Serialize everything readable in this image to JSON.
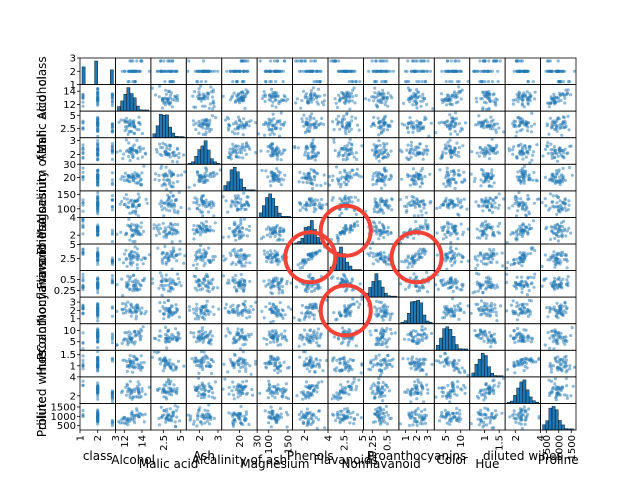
{
  "chart_data": {
    "type": "scatter-matrix",
    "variables": [
      {
        "name": "class",
        "ylabel_shown": "class",
        "lo": 1,
        "hi": 3,
        "ticks": [
          1,
          2,
          3
        ]
      },
      {
        "name": "Alcohol",
        "ylabel_shown": "Alcohol",
        "lo": 11,
        "hi": 15,
        "ticks": [
          12,
          14
        ]
      },
      {
        "name": "Malic acid",
        "ylabel_shown": "Malic acid",
        "lo": 0.7,
        "hi": 5.8,
        "ticks": [
          2.5,
          5.0
        ]
      },
      {
        "name": "Ash",
        "ylabel_shown": "Ash",
        "lo": 1.3,
        "hi": 3.2,
        "ticks": [
          2,
          3
        ]
      },
      {
        "name": "Alcalinity of ash",
        "ylabel_shown": "Alcalinity of ash",
        "lo": 10,
        "hi": 30,
        "ticks": [
          20,
          30
        ]
      },
      {
        "name": "Magnesium",
        "ylabel_shown": "Magnesium",
        "lo": 70,
        "hi": 162,
        "ticks": [
          100,
          150
        ]
      },
      {
        "name": "Phenols",
        "ylabel_shown": "Phenols",
        "lo": 1,
        "hi": 4,
        "ticks": [
          2,
          4
        ]
      },
      {
        "name": "Flavanoids",
        "ylabel_shown": "Flavanoids",
        "lo": 0.3,
        "hi": 5.1,
        "ticks": [
          2.5,
          5.0
        ]
      },
      {
        "name": "Nonflavanoid",
        "ylabel_shown": "Nonflavanoid",
        "lo": 0.1,
        "hi": 0.7,
        "ticks": [
          0.25,
          0.5
        ]
      },
      {
        "name": "Proanthocyanins",
        "ylabel_shown": "Proanthocyanins",
        "lo": 0.4,
        "hi": 3.6,
        "ticks": [
          1,
          2,
          3
        ]
      },
      {
        "name": "Color",
        "ylabel_shown": "Color",
        "lo": 1.2,
        "hi": 13,
        "ticks": [
          5,
          10
        ]
      },
      {
        "name": "Hue",
        "ylabel_shown": "Hue",
        "lo": 0.5,
        "hi": 1.7,
        "ticks": [
          1.0,
          1.5
        ]
      },
      {
        "name": "diluted wines",
        "ylabel_shown": "diluted wines",
        "lo": 1.2,
        "hi": 4,
        "ticks": [
          2,
          4
        ]
      },
      {
        "name": "Proline",
        "ylabel_shown": "Proline",
        "lo": 270,
        "hi": 1690,
        "ticks": [
          500,
          1000,
          1500
        ]
      }
    ],
    "xlabels_shown": [
      "class",
      "Alcohol",
      "Malic acid",
      "Ash",
      "Alcalinity of ash",
      "Magnesium",
      "Phenols",
      "Flavanoids",
      "Nonflavanoid",
      "Proanthocyanins",
      "Color",
      "Hue",
      "diluted wines",
      "Proline"
    ],
    "diagonal": "histogram",
    "point_color": "#1f77b4",
    "point_alpha": 0.5,
    "annotation_circles": [
      {
        "row": "Flavanoids",
        "col": "Phenols",
        "color": "#f44336"
      },
      {
        "row": "Phenols",
        "col": "Flavanoids",
        "color": "#f44336"
      },
      {
        "row": "Flavanoids",
        "col": "Proanthocyanins",
        "color": "#f44336"
      },
      {
        "row": "Proanthocyanins",
        "col": "Flavanoids",
        "color": "#f44336"
      }
    ]
  }
}
